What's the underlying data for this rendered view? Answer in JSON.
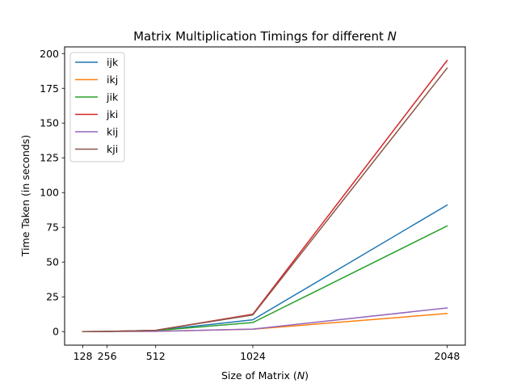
{
  "chart_data": {
    "type": "line",
    "title": "Matrix Multiplication Timings for different ",
    "title_var": "N",
    "xlabel": "Size of Matrix (",
    "xlabel_var": "N",
    "xlabel_end": ")",
    "ylabel": "Time Taken (in seconds)",
    "x": [
      128,
      256,
      512,
      1024,
      2048
    ],
    "xticks": [
      128,
      256,
      512,
      1024,
      2048
    ],
    "yticks": [
      0,
      25,
      50,
      75,
      100,
      125,
      150,
      175,
      200
    ],
    "xlim": [
      32,
      2144
    ],
    "ylim": [
      -9.76,
      204.8
    ],
    "grid": false,
    "legend_position": "upper-left",
    "series": [
      {
        "name": "ijk",
        "color": "#1f77b4",
        "values": [
          0.0,
          0.1,
          0.8,
          8.5,
          91.0
        ]
      },
      {
        "name": "ikj",
        "color": "#ff7f0e",
        "values": [
          0.0,
          0.1,
          0.2,
          1.7,
          13.0
        ]
      },
      {
        "name": "jik",
        "color": "#2ca02c",
        "values": [
          0.0,
          0.1,
          0.7,
          6.5,
          76.0
        ]
      },
      {
        "name": "jki",
        "color": "#d62728",
        "values": [
          0.0,
          0.1,
          0.9,
          12.5,
          195.0
        ]
      },
      {
        "name": "kij",
        "color": "#9467bd",
        "values": [
          0.0,
          0.1,
          0.2,
          1.8,
          17.0
        ]
      },
      {
        "name": "kji",
        "color": "#8c564b",
        "values": [
          0.0,
          0.1,
          0.9,
          12.0,
          189.5
        ]
      }
    ]
  }
}
